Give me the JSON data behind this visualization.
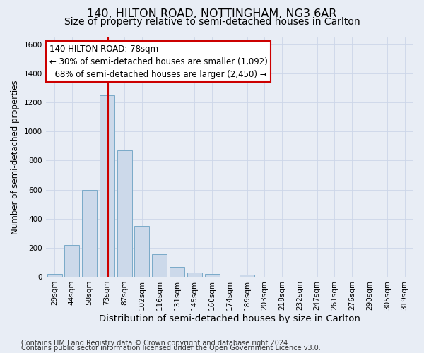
{
  "title1": "140, HILTON ROAD, NOTTINGHAM, NG3 6AR",
  "title2": "Size of property relative to semi-detached houses in Carlton",
  "xlabel": "Distribution of semi-detached houses by size in Carlton",
  "ylabel": "Number of semi-detached properties",
  "footnote1": "Contains HM Land Registry data © Crown copyright and database right 2024.",
  "footnote2": "Contains public sector information licensed under the Open Government Licence v3.0.",
  "bar_labels": [
    "29sqm",
    "44sqm",
    "58sqm",
    "73sqm",
    "87sqm",
    "102sqm",
    "116sqm",
    "131sqm",
    "145sqm",
    "160sqm",
    "174sqm",
    "189sqm",
    "203sqm",
    "218sqm",
    "232sqm",
    "247sqm",
    "261sqm",
    "276sqm",
    "290sqm",
    "305sqm",
    "319sqm"
  ],
  "bar_values": [
    20,
    220,
    600,
    1250,
    870,
    350,
    155,
    70,
    30,
    20,
    0,
    15,
    0,
    0,
    0,
    0,
    0,
    0,
    0,
    0,
    0
  ],
  "bar_color": "#ccd9ea",
  "bar_edge_color": "#7aaac8",
  "vline_color": "#cc0000",
  "vline_x": 3.07,
  "annotation_text": "140 HILTON ROAD: 78sqm\n← 30% of semi-detached houses are smaller (1,092)\n  68% of semi-detached houses are larger (2,450) →",
  "annotation_box_color": "#ffffff",
  "annotation_box_edge": "#cc0000",
  "ylim": [
    0,
    1650
  ],
  "yticks": [
    0,
    200,
    400,
    600,
    800,
    1000,
    1200,
    1400,
    1600
  ],
  "grid_color": "#ccd6e8",
  "background_color": "#e8edf5",
  "title1_fontsize": 11.5,
  "title2_fontsize": 10,
  "xlabel_fontsize": 9.5,
  "ylabel_fontsize": 8.5,
  "footnote_fontsize": 7,
  "tick_fontsize": 7.5,
  "annotation_fontsize": 8.5
}
